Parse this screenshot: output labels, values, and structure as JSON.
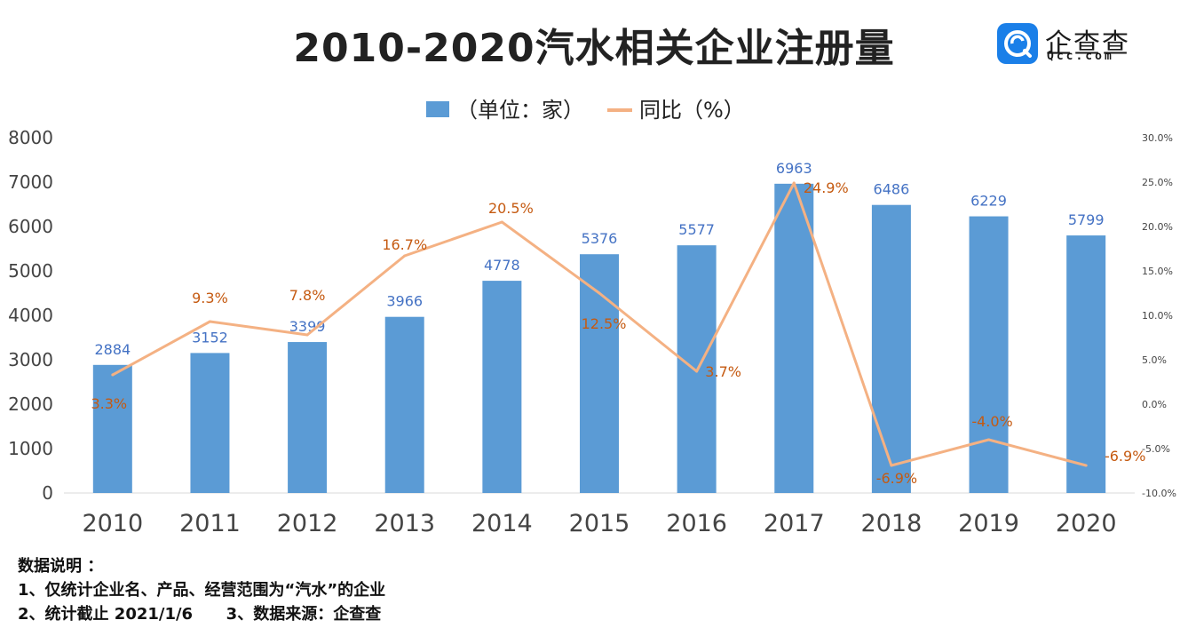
{
  "title": "2010-2020汽水相关企业注册量",
  "logo": {
    "name": "企查查",
    "domain": "Qcc.com"
  },
  "colors": {
    "bar": "#5b9bd5",
    "line": "#f4b183",
    "bar_label": "#4472c4",
    "line_label": "#c55a11"
  },
  "chart_data": {
    "type": "bar",
    "categories": [
      "2010",
      "2011",
      "2012",
      "2013",
      "2014",
      "2015",
      "2016",
      "2017",
      "2018",
      "2019",
      "2020"
    ],
    "series": [
      {
        "name": "（单位：家）",
        "type": "bar",
        "axis": "left",
        "values": [
          2884,
          3152,
          3399,
          3966,
          4778,
          5376,
          5577,
          6963,
          6486,
          6229,
          5799
        ],
        "labels": [
          "2884",
          "3152",
          "3399",
          "3966",
          "4778",
          "5376",
          "5577",
          "6963",
          "6486",
          "6229",
          "5799"
        ]
      },
      {
        "name": "同比（%）",
        "type": "line",
        "axis": "right",
        "values": [
          3.3,
          9.3,
          7.8,
          16.7,
          20.5,
          12.5,
          3.7,
          24.9,
          -6.9,
          -4.0,
          -6.9
        ],
        "labels": [
          "3.3%",
          "9.3%",
          "7.8%",
          "16.7%",
          "20.5%",
          "12.5%",
          "3.7%",
          "24.9%",
          "-6.9%",
          "-4.0%",
          "-6.9%"
        ]
      }
    ],
    "y_left": {
      "min": 0,
      "max": 8000,
      "ticks": [
        "0",
        "1000",
        "2000",
        "3000",
        "4000",
        "5000",
        "6000",
        "7000",
        "8000"
      ]
    },
    "y_right": {
      "min": -10,
      "max": 30,
      "ticks": [
        "-10.0%",
        "-5.0%",
        "0.0%",
        "5.0%",
        "10.0%",
        "15.0%",
        "20.0%",
        "25.0%",
        "30.0%"
      ]
    },
    "grid": false,
    "legend": "top-center"
  },
  "notes": [
    "数据说明 ：",
    "1、仅统计企业名、产品、经营范围为“汽水”的企业",
    "2、统计截止 2021/1/6      3、数据来源：企查查"
  ]
}
